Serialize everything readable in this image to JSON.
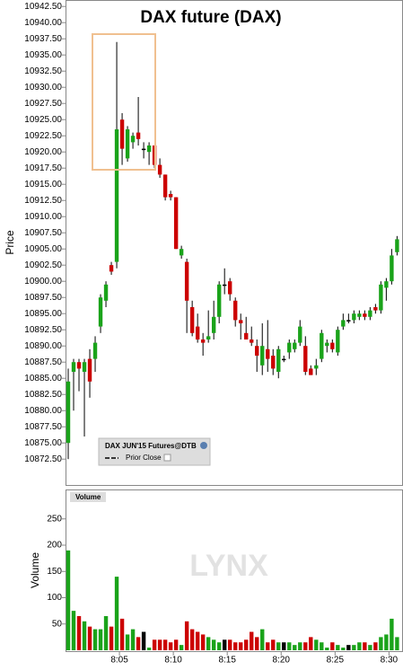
{
  "chart_data": {
    "type": "candlestick",
    "title": "DAX future (DAX)",
    "ylabel": "Price",
    "volume_label": "Volume",
    "volume_tab": "Volume",
    "watermark": "LYNX",
    "legend_title": "DAX JUN'15 Futures@DTB",
    "prior_close_label": "Prior Close",
    "up_color": "#1aa31a",
    "down_color": "#cc0000",
    "flat_color": "#000000",
    "xlim": [
      0,
      31.3
    ],
    "xticks": [
      {
        "value": 5,
        "label": "8:05"
      },
      {
        "value": 10,
        "label": "8:10"
      },
      {
        "value": 15,
        "label": "8:15"
      },
      {
        "value": 20,
        "label": "8:20"
      },
      {
        "value": 25,
        "label": "8:25"
      },
      {
        "value": 30,
        "label": "8:30"
      }
    ],
    "ylim": [
      10868.5,
      10943.5
    ],
    "yticks": [
      {
        "value": 10872.5,
        "label": "10872.50"
      },
      {
        "value": 10875,
        "label": "10875.00"
      },
      {
        "value": 10877.5,
        "label": "10877.50"
      },
      {
        "value": 10880,
        "label": "10880.00"
      },
      {
        "value": 10882.5,
        "label": "10882.50"
      },
      {
        "value": 10885,
        "label": "10885.00"
      },
      {
        "value": 10887.5,
        "label": "10887.50"
      },
      {
        "value": 10890,
        "label": "10890.00"
      },
      {
        "value": 10892.5,
        "label": "10892.50"
      },
      {
        "value": 10895,
        "label": "10895.00"
      },
      {
        "value": 10897.5,
        "label": "10897.50"
      },
      {
        "value": 10900,
        "label": "10900.00"
      },
      {
        "value": 10902.5,
        "label": "10902.50"
      },
      {
        "value": 10905,
        "label": "10905.00"
      },
      {
        "value": 10907.5,
        "label": "10907.50"
      },
      {
        "value": 10910,
        "label": "10910.00"
      },
      {
        "value": 10912.5,
        "label": "10912.50"
      },
      {
        "value": 10915,
        "label": "10915.00"
      },
      {
        "value": 10917.5,
        "label": "10917.50"
      },
      {
        "value": 10920,
        "label": "10920.00"
      },
      {
        "value": 10922.5,
        "label": "10922.50"
      },
      {
        "value": 10925,
        "label": "10925.00"
      },
      {
        "value": 10927.5,
        "label": "10927.50"
      },
      {
        "value": 10930,
        "label": "10930.00"
      },
      {
        "value": 10932.5,
        "label": "10932.50"
      },
      {
        "value": 10935,
        "label": "10935.00"
      },
      {
        "value": 10937.5,
        "label": "10937.50"
      },
      {
        "value": 10940,
        "label": "10940.00"
      },
      {
        "value": 10942.5,
        "label": "10942.50"
      }
    ],
    "volume_ylim": [
      0,
      306
    ],
    "volume_yticks": [
      50,
      100,
      150,
      200,
      250
    ],
    "x": [
      0.25,
      0.75,
      1.25,
      1.75,
      2.25,
      2.75,
      3.25,
      3.75,
      4.25,
      4.75,
      5.25,
      5.75,
      6.25,
      6.75,
      7.25,
      7.75,
      8.25,
      8.75,
      9.25,
      9.75,
      10.25,
      10.75,
      11.25,
      11.75,
      12.25,
      12.75,
      13.25,
      13.75,
      14.25,
      14.75,
      15.25,
      15.75,
      16.25,
      16.75,
      17.25,
      17.75,
      18.25,
      18.75,
      19.25,
      19.75,
      20.25,
      20.75,
      21.25,
      21.75,
      22.25,
      22.75,
      23.25,
      23.75,
      24.25,
      24.75,
      25.25,
      25.75,
      26.25,
      26.75,
      27.25,
      27.75,
      28.25,
      28.75,
      29.25,
      29.75,
      30.25,
      30.75
    ],
    "open": [
      10875,
      10886,
      10887.5,
      10886,
      10888,
      10888,
      10893,
      10897,
      10902.5,
      10903,
      10925,
      10919,
      10921.5,
      10923,
      10920.5,
      10920,
      10921,
      10918,
      10916.5,
      10913.5,
      10913,
      10904,
      10903,
      10896,
      10893,
      10891,
      10891,
      10892,
      10894.5,
      10899.5,
      10900,
      10897,
      10894,
      10892,
      10891,
      10890,
      10887,
      10889.5,
      10888.5,
      10886,
      10888,
      10889,
      10889.5,
      10890.5,
      10890,
      10886.5,
      10886.5,
      10888,
      10890,
      10890.5,
      10889,
      10893,
      10894,
      10894,
      10894.5,
      10895,
      10894.5,
      10896,
      10895.5,
      10899,
      10900,
      10904.5
    ],
    "high": [
      10886.5,
      10888,
      10888,
      10888,
      10889.5,
      10891.5,
      10898,
      10900,
      10903,
      10937,
      10926,
      10924,
      10923,
      10928.5,
      10921.5,
      10921.5,
      10921,
      10919,
      10916.5,
      10914,
      10913,
      10905.5,
      10903.5,
      10897,
      10895,
      10892,
      10895.5,
      10897,
      10900,
      10902,
      10900.5,
      10897.5,
      10895,
      10894.5,
      10893,
      10891,
      10893.5,
      10894,
      10889.5,
      10890,
      10888.5,
      10891,
      10891,
      10894,
      10891.5,
      10887,
      10888,
      10892.5,
      10891,
      10891,
      10893,
      10895,
      10895,
      10895.5,
      10895.5,
      10895.5,
      10896,
      10896.5,
      10900,
      10900.5,
      10905,
      10907
    ],
    "low": [
      10872.5,
      10880,
      10883,
      10876,
      10882,
      10886,
      10892,
      10896,
      10901,
      10902,
      10918,
      10918.5,
      10920.5,
      10921,
      10919,
      10918,
      10917.5,
      10916,
      10912.5,
      10912.5,
      10905,
      10903.5,
      10892,
      10891.5,
      10890.5,
      10888.5,
      10890.5,
      10891,
      10893.5,
      10898,
      10897,
      10893,
      10891,
      10891,
      10890,
      10886,
      10885.5,
      10886,
      10885.5,
      10885,
      10887.5,
      10888,
      10889,
      10890,
      10885.5,
      10885.5,
      10885.5,
      10887.5,
      10889,
      10889,
      10888.5,
      10892.5,
      10893.5,
      10893.5,
      10894,
      10894,
      10894,
      10895,
      10895,
      10897,
      10899.5,
      10904
    ],
    "close": [
      10884.5,
      10887.5,
      10886.5,
      10887.5,
      10884.5,
      10890.5,
      10897.5,
      10899.5,
      10901.5,
      10923.5,
      10920.5,
      10923.5,
      10922.5,
      10922,
      10920.5,
      10921,
      10918,
      10916.5,
      10913,
      10913,
      10905,
      10905,
      10897,
      10892,
      10891,
      10890.5,
      10891.5,
      10894.5,
      10899.5,
      10899.5,
      10898,
      10894,
      10893.5,
      10891,
      10890.5,
      10888.5,
      10890,
      10888,
      10886.5,
      10889.5,
      10888,
      10890.5,
      10890.5,
      10893,
      10886,
      10885.5,
      10887,
      10892,
      10890.5,
      10889.5,
      10892.5,
      10894,
      10894,
      10895,
      10895,
      10894.5,
      10895.5,
      10895.5,
      10899.5,
      10900,
      10904,
      10906.5
    ],
    "volume": [
      190,
      75,
      65,
      55,
      45,
      40,
      40,
      65,
      45,
      140,
      60,
      30,
      40,
      25,
      35,
      5,
      20,
      20,
      20,
      15,
      20,
      10,
      55,
      40,
      35,
      30,
      25,
      20,
      15,
      20,
      20,
      15,
      15,
      20,
      35,
      25,
      40,
      15,
      20,
      15,
      15,
      15,
      10,
      15,
      15,
      25,
      20,
      15,
      5,
      15,
      10,
      5,
      10,
      10,
      15,
      15,
      10,
      15,
      25,
      30,
      60,
      25
    ]
  }
}
